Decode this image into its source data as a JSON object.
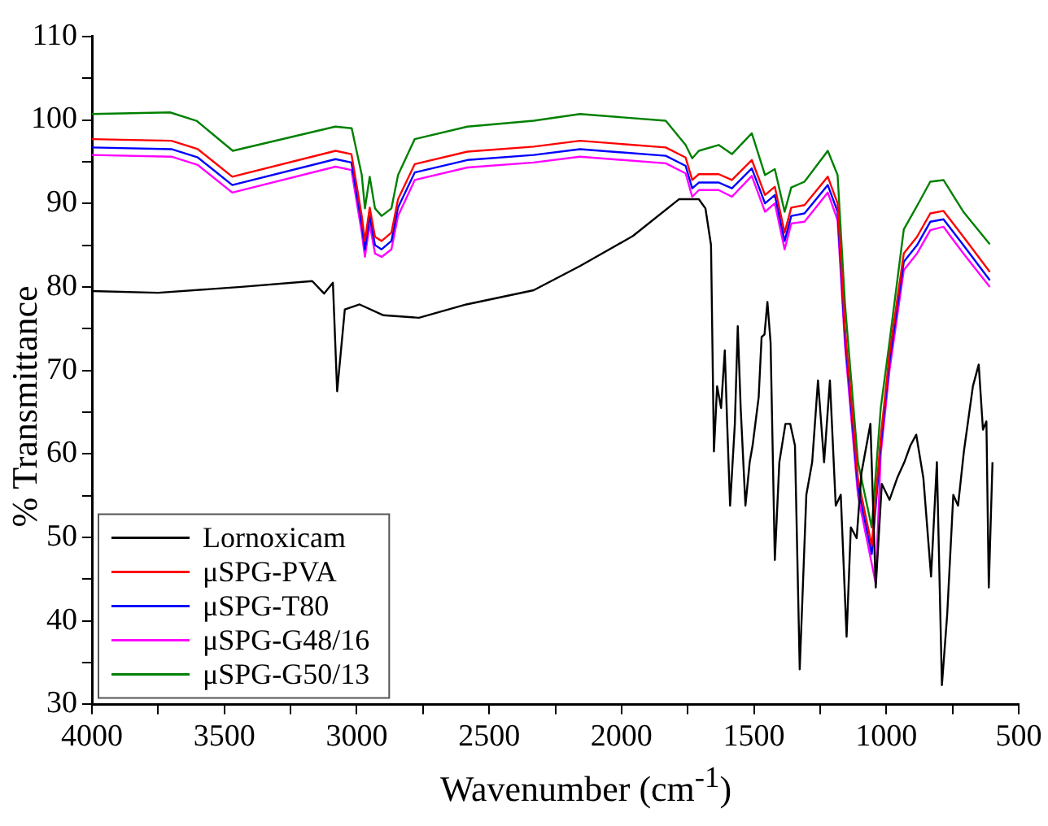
{
  "chart_data": {
    "type": "line",
    "xlabel": "Wavenumber (cm$^{-1}$)",
    "ylabel": "% Transmittance",
    "xlim": [
      4000,
      500
    ],
    "ylim": [
      30,
      110
    ],
    "xticks": [
      4000,
      {
        "value": 3750,
        "label": null
      },
      3500,
      {
        "value": 3250,
        "label": null
      },
      3000,
      {
        "value": 2750,
        "label": null
      },
      2500,
      {
        "value": 2250,
        "label": null
      },
      2000,
      {
        "value": 1750,
        "label": null
      },
      1500,
      {
        "value": 1250,
        "label": null
      },
      1000,
      {
        "value": 750,
        "label": null
      },
      500
    ],
    "yticks": [
      30,
      {
        "value": 35,
        "label": null
      },
      40,
      {
        "value": 45,
        "label": null
      },
      50,
      {
        "value": 55,
        "label": null
      },
      60,
      {
        "value": 65,
        "label": null
      },
      70,
      {
        "value": 75,
        "label": null
      },
      80,
      {
        "value": 85,
        "label": null
      },
      90,
      {
        "value": 95,
        "label": null
      },
      100,
      {
        "value": 105,
        "label": null
      },
      110
    ],
    "grid": false,
    "legend": "bottom left",
    "marker": "none",
    "line_style": "solid",
    "series": [
      {
        "name": "Lornoxicam",
        "color": "#000000",
        "x": [
          4000,
          3750,
          3436,
          3168,
          3123,
          3090,
          3074,
          3045,
          2989,
          2899,
          2765,
          2586,
          2332,
          2157,
          1957,
          1783,
          1708,
          1683,
          1662,
          1651,
          1639,
          1624,
          1610,
          1601,
          1590,
          1572,
          1561,
          1550,
          1532,
          1516,
          1505,
          1482,
          1471,
          1460,
          1449,
          1437,
          1421,
          1404,
          1381,
          1363,
          1345,
          1327,
          1302,
          1280,
          1258,
          1235,
          1213,
          1191,
          1172,
          1150,
          1134,
          1112,
          1094,
          1060,
          1040,
          1017,
          988,
          959,
          932,
          909,
          887,
          860,
          831,
          809,
          790,
          770,
          747,
          729,
          707,
          673,
          651,
          635,
          622,
          613,
          599
        ],
        "values": [
          79.5,
          79.3,
          80,
          80.7,
          79.2,
          80.5,
          67.5,
          77.3,
          77.9,
          76.6,
          76.3,
          77.9,
          79.6,
          82.5,
          86.1,
          90.5,
          90.5,
          89.4,
          85,
          60.3,
          68.1,
          65.5,
          72.4,
          63.6,
          53.8,
          63.6,
          75.3,
          65.5,
          53.8,
          59,
          61,
          66.8,
          74,
          74.3,
          78.2,
          73.3,
          47.3,
          59,
          63.6,
          63.6,
          61,
          34.2,
          55.1,
          59,
          68.8,
          59,
          68.8,
          53.8,
          55.1,
          38.1,
          51.2,
          49.9,
          57.7,
          63.6,
          44,
          56.4,
          54.5,
          57.1,
          59,
          61,
          62.3,
          57.1,
          45.3,
          59,
          32.3,
          40.8,
          55.1,
          53.8,
          60.3,
          68.1,
          70.7,
          62.9,
          63.9,
          44,
          59
        ]
      },
      {
        "name": "μSPG-PVA",
        "color": "#ff0000",
        "x": [
          4000,
          3700,
          3600,
          3470,
          3080,
          3020,
          2981,
          2969,
          2951,
          2931,
          2906,
          2869,
          2844,
          2781,
          2582,
          2332,
          2157,
          1833,
          1758,
          1733,
          1708,
          1633,
          1583,
          1508,
          1458,
          1421,
          1384,
          1359,
          1309,
          1221,
          1184,
          1156,
          1107,
          1055,
          1021,
          988,
          934,
          884,
          834,
          784,
          709,
          609
        ],
        "values": [
          97.7,
          97.5,
          96.5,
          93.2,
          96.3,
          95.9,
          88.5,
          85.5,
          89.5,
          86,
          85.5,
          86.5,
          90.5,
          94.7,
          96.2,
          96.8,
          97.5,
          96.7,
          95.5,
          92.8,
          93.5,
          93.5,
          92.8,
          95.2,
          91,
          92,
          86.5,
          89.5,
          89.8,
          93.2,
          90,
          75,
          57,
          49,
          62,
          72,
          84,
          86,
          88.8,
          89.1,
          86,
          81.8
        ]
      },
      {
        "name": "μSPG-T80",
        "color": "#0000ff",
        "x": [
          4000,
          3700,
          3600,
          3470,
          3080,
          3020,
          2981,
          2969,
          2951,
          2931,
          2906,
          2869,
          2844,
          2781,
          2582,
          2332,
          2157,
          1833,
          1758,
          1733,
          1708,
          1633,
          1583,
          1508,
          1458,
          1421,
          1384,
          1359,
          1309,
          1221,
          1184,
          1156,
          1107,
          1055,
          1021,
          988,
          934,
          884,
          834,
          784,
          709,
          609
        ],
        "values": [
          96.7,
          96.5,
          95.5,
          92.2,
          95.3,
          94.9,
          87.5,
          84.5,
          88.5,
          85,
          84.5,
          85.5,
          89.5,
          93.7,
          95.2,
          95.8,
          96.5,
          95.7,
          94.5,
          91.8,
          92.5,
          92.5,
          91.8,
          94.2,
          90,
          91,
          85.5,
          88.5,
          88.8,
          92.2,
          89,
          74,
          56,
          48,
          61,
          71,
          83,
          85,
          87.8,
          88.1,
          85,
          80.8
        ]
      },
      {
        "name": "μSPG-G48/16",
        "color": "#ff00ff",
        "x": [
          4000,
          3700,
          3600,
          3470,
          3080,
          3020,
          2981,
          2969,
          2951,
          2931,
          2906,
          2869,
          2844,
          2781,
          2582,
          2332,
          2157,
          1833,
          1758,
          1733,
          1708,
          1633,
          1583,
          1508,
          1458,
          1421,
          1384,
          1359,
          1309,
          1221,
          1184,
          1156,
          1107,
          1040,
          1021,
          988,
          934,
          884,
          834,
          784,
          709,
          609
        ],
        "values": [
          95.8,
          95.6,
          94.6,
          91.3,
          94.4,
          94,
          86.5,
          83.6,
          87.5,
          84,
          83.6,
          84.5,
          88.5,
          92.8,
          94.3,
          94.9,
          95.6,
          94.8,
          93.6,
          90.8,
          91.6,
          91.6,
          90.8,
          93.3,
          89,
          90,
          84.5,
          87.6,
          87.8,
          91.3,
          88,
          73,
          55,
          44.5,
          60,
          70,
          82,
          84,
          86.8,
          87.2,
          84,
          80
        ]
      },
      {
        "name": "μSPG-G50/13",
        "color": "#008000",
        "x": [
          4000,
          3705,
          3605,
          3468,
          3081,
          3019,
          2981,
          2969,
          2951,
          2931,
          2906,
          2869,
          2844,
          2781,
          2582,
          2332,
          2157,
          1833,
          1758,
          1733,
          1708,
          1633,
          1583,
          1508,
          1458,
          1421,
          1384,
          1359,
          1309,
          1221,
          1184,
          1156,
          1107,
          1055,
          1021,
          988,
          934,
          884,
          834,
          784,
          709,
          609
        ],
        "values": [
          100.7,
          100.9,
          99.9,
          96.3,
          99.2,
          99,
          93.4,
          89.4,
          93.2,
          89.4,
          88.5,
          89.4,
          93.4,
          97.7,
          99.2,
          99.9,
          100.7,
          99.9,
          97,
          95.4,
          96.3,
          97,
          95.9,
          98.4,
          93.4,
          94.1,
          89,
          91.9,
          92.6,
          96.3,
          93.4,
          77.9,
          59,
          51.2,
          65.5,
          73.4,
          86.9,
          89.7,
          92.6,
          92.8,
          89,
          85.1
        ]
      }
    ]
  }
}
